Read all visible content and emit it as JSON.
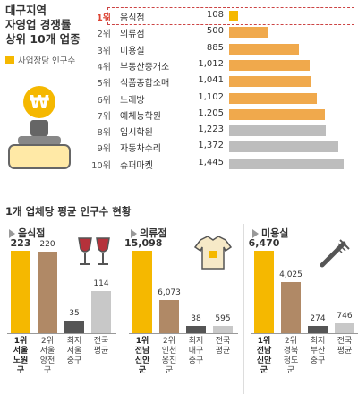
{
  "header": {
    "title_line1": "대구지역",
    "title_line2": "자영업 경쟁률",
    "title_line3": "상위 10개 업종",
    "legend_label": "사업장당 인구수"
  },
  "ranking": {
    "rows": [
      {
        "rank": "1위",
        "name": "음식점",
        "value": 108,
        "value_label": "108"
      },
      {
        "rank": "2위",
        "name": "의류점",
        "value": 500,
        "value_label": "500"
      },
      {
        "rank": "3위",
        "name": "미용실",
        "value": 885,
        "value_label": "885"
      },
      {
        "rank": "4위",
        "name": "부동산중개소",
        "value": 1012,
        "value_label": "1,012"
      },
      {
        "rank": "5위",
        "name": "식품종합소매",
        "value": 1041,
        "value_label": "1,041"
      },
      {
        "rank": "6위",
        "name": "노래방",
        "value": 1102,
        "value_label": "1,102"
      },
      {
        "rank": "7위",
        "name": "예체능학원",
        "value": 1205,
        "value_label": "1,205"
      },
      {
        "rank": "8위",
        "name": "입시학원",
        "value": 1223,
        "value_label": "1,223"
      },
      {
        "rank": "9위",
        "name": "자동차수리",
        "value": 1372,
        "value_label": "1,372"
      },
      {
        "rank": "10위",
        "name": "슈퍼마켓",
        "value": 1445,
        "value_label": "1,445"
      }
    ]
  },
  "section_title": "1개 업체당 평균 인구수 현황",
  "colors": {
    "accent": "#f5b800",
    "brown": "#b08966",
    "dark": "#555555",
    "gray": "#c8c8c8",
    "highlight_text": "#d43c2c"
  },
  "icons": [
    "won-icon",
    "shop-owner-icon",
    "wine-glasses-icon",
    "shirt-icon",
    "comb-icon"
  ],
  "chart_data": [
    {
      "type": "bar",
      "orientation": "horizontal",
      "title": "대구지역 자영업 경쟁률 상위 10개 업종",
      "categories": [
        "음식점",
        "의류점",
        "미용실",
        "부동산중개소",
        "식품종합소매",
        "노래방",
        "예체능학원",
        "입시학원",
        "자동차수리",
        "슈퍼마켓"
      ],
      "series": [
        {
          "name": "사업장당 인구수",
          "values": [
            108,
            500,
            885,
            1012,
            1041,
            1102,
            1205,
            1223,
            1372,
            1445
          ]
        }
      ],
      "legend": "left"
    },
    {
      "type": "bar",
      "title": "음식점",
      "categories": [
        "1위 서울 노원구",
        "2위 서울 양천구",
        "최저 서울 중구",
        "전국 평균"
      ],
      "labels": [
        [
          "1위",
          "서울",
          "노원구"
        ],
        [
          "2위",
          "서울",
          "양천구"
        ],
        [
          "최저",
          "서울",
          "중구"
        ],
        [
          "전국",
          "평균"
        ]
      ],
      "values": [
        223,
        220,
        35,
        114
      ],
      "value_labels": [
        "223",
        "220",
        "35",
        "114"
      ]
    },
    {
      "type": "bar",
      "title": "의류점",
      "categories": [
        "1위 전남 신안군",
        "2위 인천 옹진군",
        "최저 대구 중구",
        "전국 평균"
      ],
      "labels": [
        [
          "1위",
          "전남",
          "신안군"
        ],
        [
          "2위",
          "인천",
          "옹진군"
        ],
        [
          "최저",
          "대구",
          "중구"
        ],
        [
          "전국",
          "평균"
        ]
      ],
      "values": [
        15098,
        6073,
        38,
        595
      ],
      "value_labels": [
        "15,098",
        "6,073",
        "38",
        "595"
      ]
    },
    {
      "type": "bar",
      "title": "미용실",
      "categories": [
        "1위 전남 신안군",
        "2위 경북 청도군",
        "최저 부산 중구",
        "전국 평균"
      ],
      "labels": [
        [
          "1위",
          "전남",
          "신안군"
        ],
        [
          "2위",
          "경북",
          "청도군"
        ],
        [
          "최저",
          "부산",
          "중구"
        ],
        [
          "전국",
          "평균"
        ]
      ],
      "values": [
        6470,
        4025,
        274,
        746
      ],
      "value_labels": [
        "6,470",
        "4,025",
        "274",
        "746"
      ]
    }
  ]
}
